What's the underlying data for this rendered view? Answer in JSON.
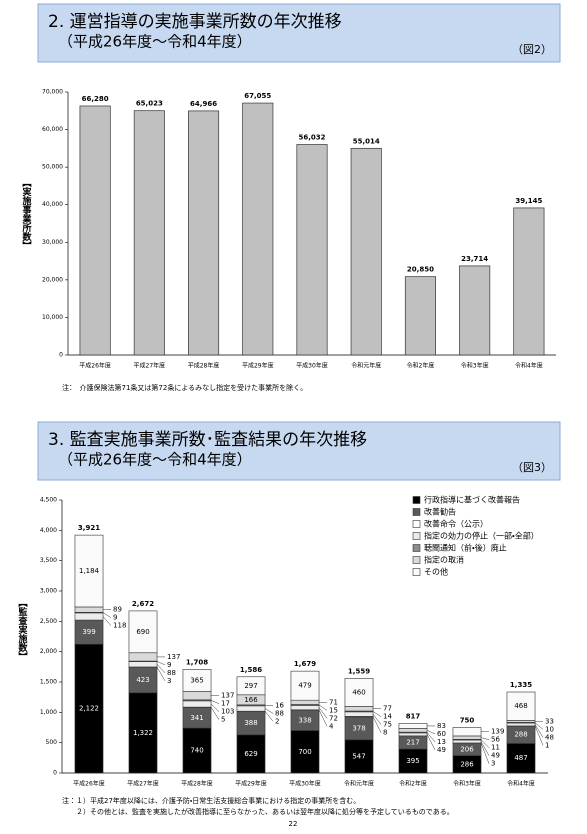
{
  "chart_data": [
    {
      "type": "bar",
      "title": "2. 運営指導の実施事業所数の年次推移",
      "subtitle": "（平成26年度～令和4年度）",
      "figure_label": "（図2）",
      "y_label": "【実施事業所数】",
      "categories": [
        "平成26年度",
        "平成27年度",
        "平成28年度",
        "平成29年度",
        "平成30年度",
        "令和元年度",
        "令和2年度",
        "令和3年度",
        "令和4年度"
      ],
      "values": [
        66280,
        65023,
        64966,
        67055,
        56032,
        55014,
        20850,
        23714,
        39145
      ],
      "value_labels": [
        "66,280",
        "65,023",
        "64,966",
        "67,055",
        "56,032",
        "55,014",
        "20,850",
        "23,714",
        "39,145"
      ],
      "color": "#c0c0c0",
      "ylim": [
        0,
        70000
      ],
      "yticks": [
        0,
        {
          "value": 10000,
          "label": "10,000"
        },
        {
          "value": 20000,
          "label": "20,000"
        },
        {
          "value": 30000,
          "label": "30,000"
        },
        {
          "value": 40000,
          "label": "40,000"
        },
        {
          "value": 50000,
          "label": "50,000"
        },
        {
          "value": 60000,
          "label": "60,000"
        },
        {
          "value": 70000,
          "label": "70,000"
        }
      ],
      "notes": [
        "注：　介護保険法第71条又は第72条によるみなし指定を受けた事業所を除く。"
      ]
    },
    {
      "type": "stacked_bar",
      "title": "3. 監査実施事業所数･監査結果の年次推移",
      "subtitle": "（平成26年度～令和4年度）",
      "figure_label": "（図3）",
      "y_label": "【監査実施数】",
      "categories": [
        "平成26年度",
        "平成27年度",
        "平成28年度",
        "平成29年度",
        "平成30年度",
        "令和元年度",
        "令和2年度",
        "令和3年度",
        "令和4年度"
      ],
      "series": [
        {
          "name": "行政指導に基づく改善報告",
          "color": "#000000",
          "values": [
            2122,
            1322,
            740,
            629,
            700,
            547,
            395,
            286,
            487
          ],
          "value_labels": [
            "2,122",
            "1,322",
            "740",
            "629",
            "700",
            "547",
            "395",
            "286",
            "487"
          ]
        },
        {
          "name": "改善勧告",
          "color": "#595959",
          "values": [
            399,
            423,
            341,
            388,
            338,
            378,
            217,
            206,
            288
          ]
        },
        {
          "name": "改善命令（公示）",
          "color": "#ffffff",
          "values": [
            null,
            3,
            5,
            2,
            4,
            8,
            null,
            3,
            1
          ]
        },
        {
          "name": "指定の効力の停止（一部・全部）",
          "color": "#ececec",
          "values": [
            118,
            88,
            103,
            88,
            72,
            75,
            49,
            49,
            48
          ]
        },
        {
          "name": "聴聞通知（前・後）廃止",
          "color": "#8c8c8c",
          "values": [
            9,
            9,
            17,
            16,
            15,
            14,
            13,
            11,
            10
          ]
        },
        {
          "name": "指定の取消",
          "color": "#d9d9d9",
          "values": [
            89,
            137,
            137,
            166,
            71,
            77,
            60,
            56,
            33
          ]
        },
        {
          "name": "その他",
          "color": "#fafafa",
          "values": [
            1184,
            690,
            365,
            297,
            479,
            460,
            83,
            139,
            468
          ],
          "value_labels": [
            "1,184",
            "690",
            "365",
            "297",
            "479",
            "460",
            "83",
            "139",
            "468"
          ]
        }
      ],
      "totals": [
        3921,
        2672,
        1708,
        1586,
        1679,
        1559,
        817,
        750,
        1335
      ],
      "total_labels": [
        "3,921",
        "2,672",
        "1,708",
        "1,586",
        "1,679",
        "1,559",
        "817",
        "750",
        "1,335"
      ],
      "ylim": [
        0,
        4500
      ],
      "yticks": [
        0,
        500,
        {
          "value": 1000,
          "label": "1,000"
        },
        {
          "value": 1500,
          "label": "1,500"
        },
        {
          "value": 2000,
          "label": "2,000"
        },
        {
          "value": 2500,
          "label": "2,500"
        },
        {
          "value": 3000,
          "label": "3,000"
        },
        {
          "value": 3500,
          "label": "3,500"
        },
        {
          "value": 4000,
          "label": "4,000"
        },
        {
          "value": 4500,
          "label": "4,500"
        }
      ],
      "legend": "upper right",
      "notes": [
        "注：１）平成27年度以降には、介護予防・日常生活支援総合事業における指定の事業所を含む。",
        "　　２）その他とは、監査を実施したが改善指導に至らなかった、あるいは翌年度以降に処分等を予定しているものである。"
      ]
    }
  ],
  "page_number": "22"
}
